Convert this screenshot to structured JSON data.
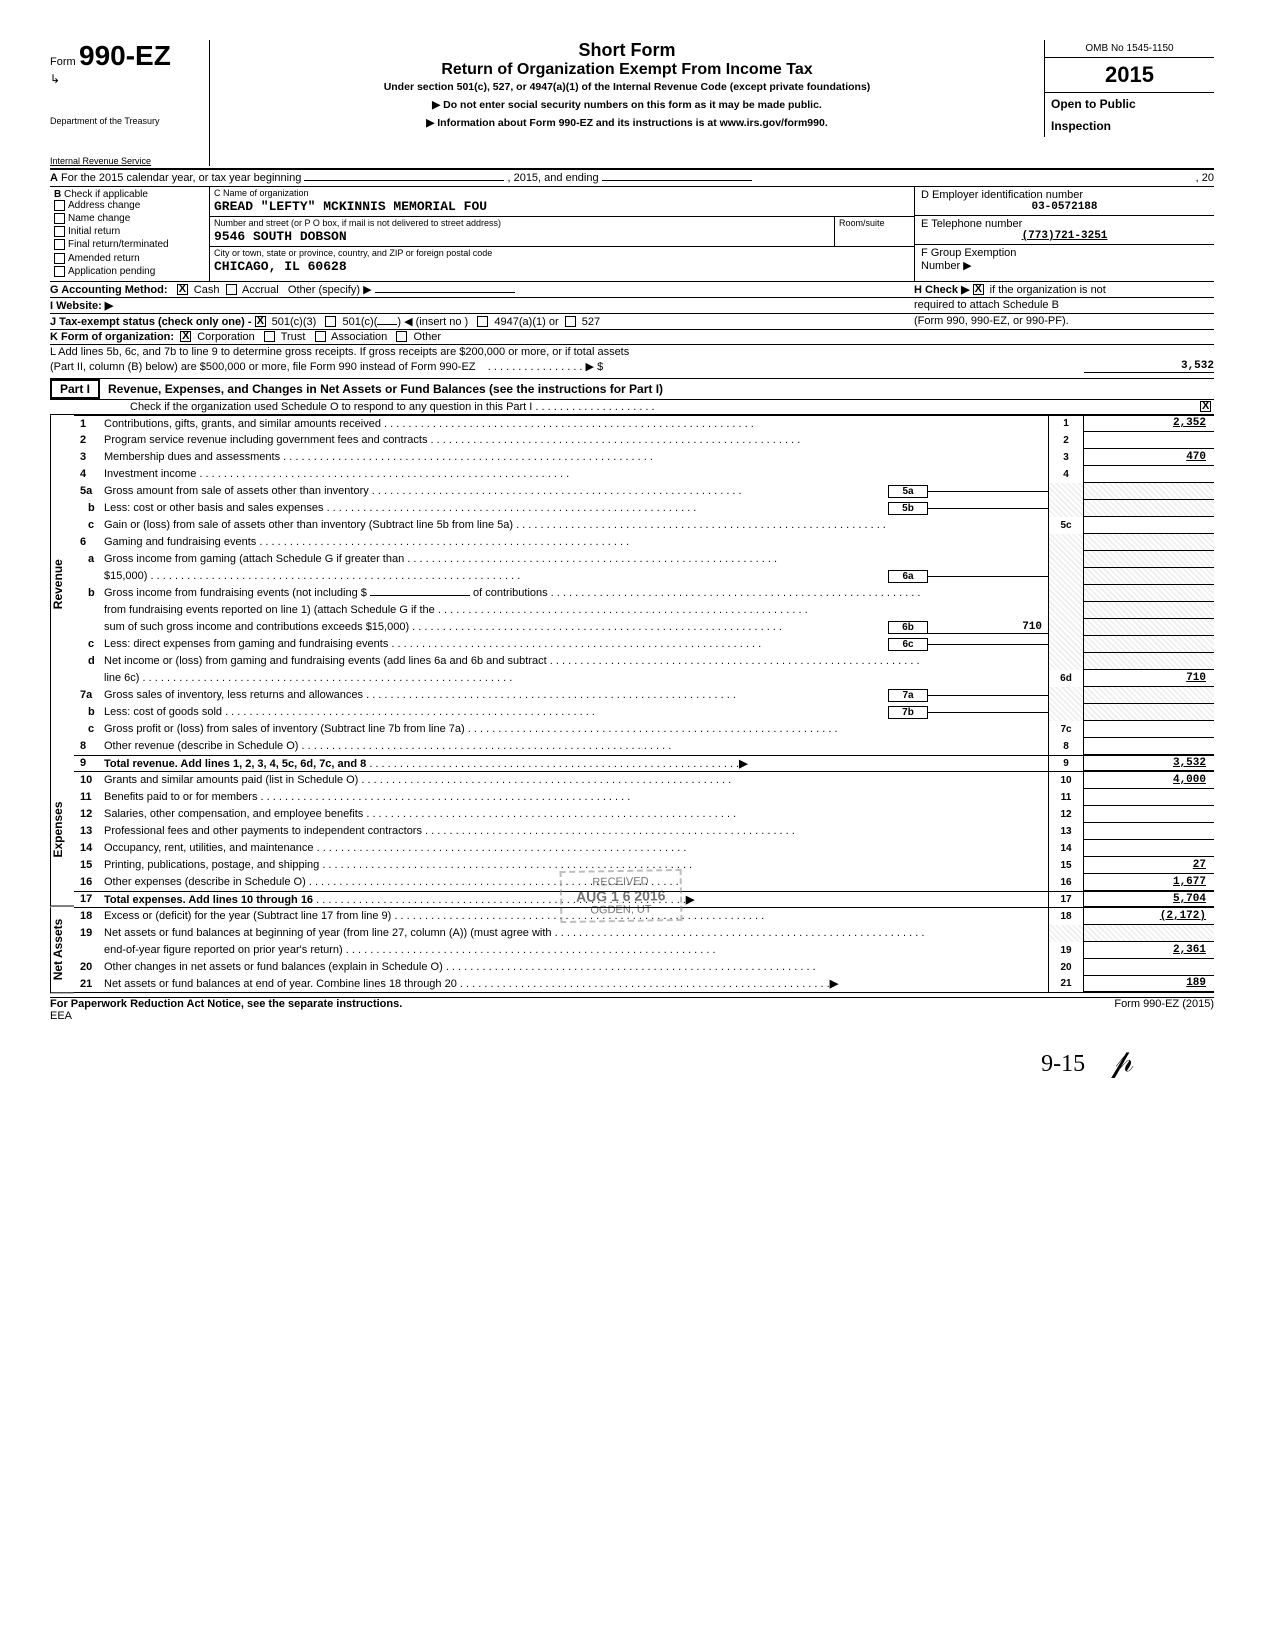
{
  "header": {
    "form_word": "Form",
    "form_number": "990-EZ",
    "dept1": "Department of the Treasury",
    "dept2": "Internal Revenue Service",
    "title1": "Short Form",
    "title2": "Return of Organization Exempt From Income Tax",
    "subtitle": "Under section 501(c), 527, or 4947(a)(1) of the Internal Revenue Code (except private foundations)",
    "note1": "▶  Do not enter social security numbers on this form as it may be made public.",
    "note2": "▶  Information about Form 990-EZ and its instructions is at www.irs.gov/form990.",
    "omb": "OMB No 1545-1150",
    "year": "2015",
    "open1": "Open to Public",
    "open2": "Inspection"
  },
  "row_a": {
    "left_a": "A",
    "left_text": "For the 2015 calendar year, or tax year beginning",
    "mid": ", 2015, and ending",
    "right": ", 20"
  },
  "section_b": {
    "b_label": "B",
    "b_text": "Check if applicable",
    "checks": [
      "Address change",
      "Name change",
      "Initial return",
      "Final return/terminated",
      "Amended return",
      "Application pending"
    ],
    "c_label": "C  Name of organization",
    "c_name": "GREAD \"LEFTY\" MCKINNIS MEMORIAL FOU",
    "addr_label": "Number and street (or P O box, if mail is not delivered to street address)",
    "addr_room": "Room/suite",
    "addr": "9546 SOUTH DOBSON",
    "city_label": "City or town, state or province, country, and ZIP or foreign postal code",
    "city": "CHICAGO, IL 60628",
    "d_label": "D  Employer identification number",
    "d_val": "03-0572188",
    "e_label": "E  Telephone number",
    "e_val": "(773)721-3251",
    "f_label": "F  Group Exemption",
    "f_label2": "Number  ▶"
  },
  "lines_gk": {
    "g": "G  Accounting Method:",
    "g_cash": "Cash",
    "g_accrual": "Accrual",
    "g_other": "Other (specify) ▶",
    "h": "H  Check ▶",
    "h_text": "if the organization is not",
    "h_text2": "required to attach Schedule B",
    "h_text3": "(Form 990, 990-EZ, or 990-PF).",
    "i": "I   Website:   ▶",
    "j": "J   Tax-exempt status (check only one) -",
    "j_501c3": "501(c)(3)",
    "j_501c": "501(c)(",
    "j_insert": ")  ◀ (insert no )",
    "j_4947": "4947(a)(1) or",
    "j_527": "527",
    "k": "K  Form of organization:",
    "k_corp": "Corporation",
    "k_trust": "Trust",
    "k_assoc": "Association",
    "k_other": "Other",
    "l1": "L  Add lines 5b, 6c, and 7b to line 9 to determine gross receipts. If gross receipts are $200,000 or more, or if total assets",
    "l2": "(Part II, column (B) below) are $500,000 or more, file Form 990 instead of Form 990-EZ",
    "l_dots": ". . . . . . . . . . . . . . . . ▶ $",
    "l_val": "3,532"
  },
  "part1": {
    "label": "Part I",
    "title": "Revenue, Expenses, and Changes in Net Assets or Fund Balances (see the instructions for Part I)",
    "check_line": "Check if the organization used Schedule O to respond to any question in this Part I   . . . . . . . . . . . . . . . . . . . ."
  },
  "side_labels": {
    "revenue": "Revenue",
    "expenses": "Expenses",
    "netassets": "Net Assets"
  },
  "rows": {
    "r1": {
      "n": "1",
      "d": "Contributions, gifts, grants, and similar amounts received",
      "box": "1",
      "v": "2,352"
    },
    "r2": {
      "n": "2",
      "d": "Program service revenue including government fees and contracts",
      "box": "2",
      "v": ""
    },
    "r3": {
      "n": "3",
      "d": "Membership dues and assessments",
      "box": "3",
      "v": "470"
    },
    "r4": {
      "n": "4",
      "d": "Investment income",
      "box": "4",
      "v": ""
    },
    "r5a": {
      "n": "5a",
      "d": "Gross amount from sale of assets other than inventory",
      "mb": "5a",
      "mv": ""
    },
    "r5b": {
      "n": "b",
      "d": "Less: cost or other basis and sales expenses",
      "mb": "5b",
      "mv": ""
    },
    "r5c": {
      "n": "c",
      "d": "Gain or (loss) from sale of assets other than inventory (Subtract line 5b from line 5a)",
      "box": "5c",
      "v": ""
    },
    "r6": {
      "n": "6",
      "d": "Gaming and fundraising events"
    },
    "r6a1": {
      "n": "a",
      "d": "Gross income from gaming (attach Schedule G if greater than"
    },
    "r6a2": {
      "d": "$15,000)",
      "mb": "6a",
      "mv": ""
    },
    "r6b1": {
      "n": "b",
      "d": "Gross income from fundraising events (not including $",
      "suffix": "of contributions"
    },
    "r6b2": {
      "d": "from fundraising events reported on line 1) (attach Schedule G if the"
    },
    "r6b3": {
      "d": "sum of such gross income and contributions exceeds $15,000)",
      "mb": "6b",
      "mv": "710"
    },
    "r6c": {
      "n": "c",
      "d": "Less: direct expenses from gaming and fundraising events",
      "mb": "6c",
      "mv": ""
    },
    "r6d1": {
      "n": "d",
      "d": "Net income or (loss) from gaming and fundraising events (add lines 6a and 6b and subtract"
    },
    "r6d2": {
      "d": "line 6c)",
      "box": "6d",
      "v": "710"
    },
    "r7a": {
      "n": "7a",
      "d": "Gross sales of inventory, less returns and allowances",
      "mb": "7a",
      "mv": ""
    },
    "r7b": {
      "n": "b",
      "d": "Less: cost of goods sold",
      "mb": "7b",
      "mv": ""
    },
    "r7c": {
      "n": "c",
      "d": "Gross profit or (loss) from sales of inventory (Subtract line 7b from line 7a)",
      "box": "7c",
      "v": ""
    },
    "r8": {
      "n": "8",
      "d": "Other revenue (describe in Schedule O)",
      "box": "8",
      "v": ""
    },
    "r9": {
      "n": "9",
      "d": "Total revenue.  Add lines 1, 2, 3, 4, 5c, 6d, 7c, and 8",
      "box": "9",
      "v": "3,532",
      "arrow": "▶"
    },
    "r10": {
      "n": "10",
      "d": "Grants and similar amounts paid (list in Schedule O)",
      "box": "10",
      "v": "4,000"
    },
    "r11": {
      "n": "11",
      "d": "Benefits paid to or for members",
      "box": "11",
      "v": ""
    },
    "r12": {
      "n": "12",
      "d": "Salaries, other compensation, and employee benefits",
      "box": "12",
      "v": ""
    },
    "r13": {
      "n": "13",
      "d": "Professional fees and other payments to independent contractors",
      "box": "13",
      "v": ""
    },
    "r14": {
      "n": "14",
      "d": "Occupancy, rent, utilities, and maintenance",
      "box": "14",
      "v": ""
    },
    "r15": {
      "n": "15",
      "d": "Printing, publications, postage, and shipping",
      "box": "15",
      "v": "27"
    },
    "r16": {
      "n": "16",
      "d": "Other expenses (describe in Schedule O)",
      "box": "16",
      "v": "1,677"
    },
    "r17": {
      "n": "17",
      "d": "Total expenses.  Add lines 10 through 16",
      "box": "17",
      "v": "5,704",
      "arrow": "▶"
    },
    "r18": {
      "n": "18",
      "d": "Excess or (deficit) for the year (Subtract line 17 from line 9)",
      "box": "18",
      "v": "(2,172)"
    },
    "r19a": {
      "n": "19",
      "d": "Net assets or fund balances at beginning of year (from line 27, column (A)) (must agree with"
    },
    "r19b": {
      "d": "end-of-year figure reported on prior year's return)",
      "box": "19",
      "v": "2,361"
    },
    "r20": {
      "n": "20",
      "d": "Other changes in net assets or fund balances (explain in Schedule O)",
      "box": "20",
      "v": ""
    },
    "r21": {
      "n": "21",
      "d": "Net assets or fund balances at end of year. Combine lines 18 through 20",
      "box": "21",
      "v": "189",
      "arrow": "▶"
    }
  },
  "stamp": {
    "received": "RECEIVED",
    "date": "AUG 1 6 2016",
    "ogden": "OGDEN, UT"
  },
  "footer": {
    "left": "For Paperwork Reduction Act Notice, see the separate instructions.",
    "eea": "EEA",
    "right": "Form 990-EZ (2015)"
  },
  "hand": "9-15"
}
